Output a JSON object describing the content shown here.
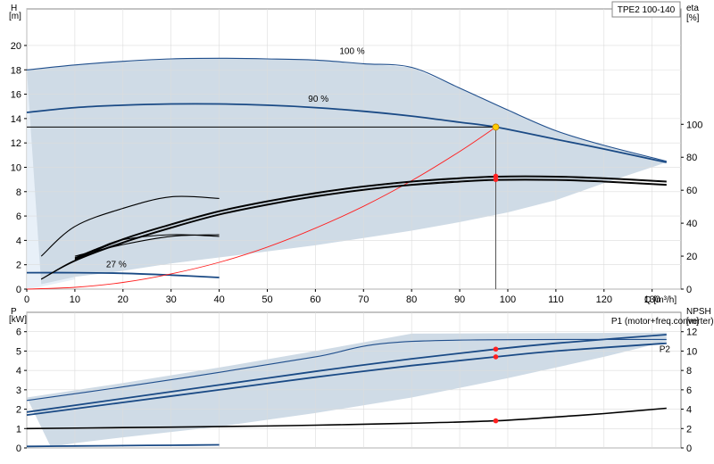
{
  "model_label": "TPE2 100-140",
  "colors": {
    "envelope_fill": "#cfdbe6",
    "envelope_light": "#e8f0f8",
    "envelope_edge": "#1f4e8c",
    "curve_dark_blue": "#1a4a85",
    "curve_black": "#000000",
    "system_curve": "#ff2020",
    "duty_marker": "#ff2020",
    "duty_point": "#ffcc00"
  },
  "chart_data": [
    {
      "id": "head",
      "type": "line",
      "xlabel": "Q [m³/h]",
      "ylabel": "H",
      "ylabel_unit": "[m]",
      "y2label": "eta",
      "y2label_unit": "[%]",
      "xlim": [
        0,
        136
      ],
      "ylim": [
        0,
        23
      ],
      "y2lim": [
        0,
        170
      ],
      "x_ticks": [
        0,
        10,
        20,
        30,
        40,
        50,
        60,
        70,
        80,
        90,
        100,
        110,
        120,
        130
      ],
      "y_ticks": [
        0,
        2,
        4,
        6,
        8,
        10,
        12,
        14,
        16,
        18,
        20
      ],
      "y2_ticks": [
        0,
        20,
        40,
        60,
        80,
        100
      ],
      "envelope": {
        "x": [
          0,
          10,
          20,
          30,
          40,
          50,
          60,
          70,
          80,
          90,
          100,
          110,
          120,
          133,
          133,
          120,
          110,
          100,
          90,
          80,
          70,
          60,
          50,
          40,
          30,
          20,
          10,
          3
        ],
        "y": [
          18.0,
          18.4,
          18.7,
          18.9,
          18.95,
          18.9,
          18.8,
          18.5,
          18.2,
          16.5,
          14.7,
          13.0,
          11.8,
          10.5,
          10.4,
          8.7,
          7.3,
          6.3,
          5.5,
          4.8,
          4.2,
          3.6,
          3.1,
          2.6,
          2.1,
          1.5,
          1.0,
          0.4
        ]
      },
      "series": [
        {
          "label": "100 %",
          "style": "envelope_edge",
          "x": [
            0,
            10,
            20,
            30,
            40,
            50,
            60,
            70,
            80,
            90,
            100,
            110,
            120,
            133
          ],
          "y": [
            18.0,
            18.4,
            18.7,
            18.9,
            18.95,
            18.9,
            18.8,
            18.5,
            18.2,
            16.5,
            14.7,
            13.0,
            11.8,
            10.5
          ]
        },
        {
          "label": "90 %",
          "style": "curve_dark_blue",
          "x": [
            0,
            10,
            20,
            30,
            40,
            50,
            60,
            70,
            80,
            90,
            97.5,
            110,
            120,
            133
          ],
          "y": [
            14.5,
            14.9,
            15.1,
            15.2,
            15.2,
            15.1,
            14.9,
            14.6,
            14.2,
            13.7,
            13.3,
            12.3,
            11.5,
            10.4
          ]
        },
        {
          "label": "27 %",
          "style": "curve_dark_blue",
          "x": [
            0,
            10,
            20,
            30,
            40
          ],
          "y": [
            1.35,
            1.35,
            1.3,
            1.15,
            0.95
          ]
        },
        {
          "label": "",
          "style": "system_curve",
          "x": [
            0,
            10,
            20,
            30,
            40,
            50,
            60,
            70,
            80,
            90,
            97.5
          ],
          "y": [
            0.0,
            0.15,
            0.55,
            1.25,
            2.2,
            3.45,
            5.0,
            6.8,
            8.9,
            11.3,
            13.3
          ]
        }
      ],
      "efficiency_curves": [
        {
          "x": [
            3,
            10,
            20,
            30,
            40,
            50,
            60,
            70,
            80,
            90,
            97.5,
            110,
            120,
            133
          ],
          "y": [
            6,
            17,
            28,
            37,
            45,
            51,
            56,
            60,
            63,
            65,
            66,
            66,
            65,
            63
          ]
        },
        {
          "x": [
            3,
            10,
            20,
            30,
            40,
            50,
            60,
            70,
            80,
            90,
            97.5,
            110,
            120,
            133
          ],
          "y": [
            6,
            17.5,
            28.5,
            37.5,
            45.5,
            51.5,
            56.5,
            60.5,
            63.5,
            65.5,
            66.5,
            66.5,
            65.5,
            63.5
          ]
        },
        {
          "x": [
            10,
            20,
            30,
            40,
            50,
            60,
            70,
            80,
            90,
            97.5,
            110,
            120,
            133
          ],
          "y": [
            18,
            30,
            39,
            47,
            53,
            58,
            62,
            65,
            67,
            68,
            68,
            67,
            65
          ]
        },
        {
          "x": [
            10,
            20,
            30,
            40,
            50,
            60,
            70,
            80,
            90,
            97.5,
            110,
            120,
            133
          ],
          "y": [
            18.5,
            30.5,
            39.5,
            47.5,
            53.5,
            58.5,
            62.5,
            65.5,
            67.5,
            68.5,
            68.5,
            67.5,
            65.5
          ]
        },
        {
          "x": [
            10,
            15,
            20,
            30,
            40
          ],
          "y": [
            19,
            25,
            30,
            33,
            32
          ]
        },
        {
          "x": [
            3,
            10,
            20,
            30,
            40
          ],
          "y": [
            20,
            38,
            49,
            56,
            55
          ]
        },
        {
          "x": [
            10,
            20,
            30,
            40
          ],
          "y": [
            20,
            27,
            32,
            33
          ]
        }
      ],
      "duty_point": {
        "q": 97.5,
        "h": 13.3,
        "eta_markers": [
          66.5,
          68.5
        ]
      }
    },
    {
      "id": "power",
      "type": "line",
      "ylabel": "P",
      "ylabel_unit": "[kW]",
      "y2label": "NPSH",
      "y2label_unit": "[m]",
      "xlim": [
        0,
        136
      ],
      "ylim": [
        0,
        7
      ],
      "y2lim": [
        0,
        14
      ],
      "y_ticks": [
        0,
        1,
        2,
        3,
        4,
        5,
        6
      ],
      "y2_ticks": [
        0,
        2,
        4,
        6,
        8,
        10,
        12
      ],
      "envelope": {
        "x": [
          0,
          20,
          40,
          60,
          80,
          133,
          133,
          120,
          100,
          80,
          60,
          40,
          20,
          10,
          5
        ],
        "y": [
          2.6,
          3.35,
          4.15,
          5.0,
          5.9,
          5.95,
          5.5,
          4.7,
          3.6,
          2.6,
          1.8,
          1.1,
          0.55,
          0.25,
          0.05
        ]
      },
      "series": [
        {
          "label": "P1 (motor+freq.converter)",
          "style": "curve_dark_blue",
          "x": [
            0,
            20,
            40,
            60,
            80,
            97.5,
            110,
            133
          ],
          "y": [
            1.85,
            2.55,
            3.25,
            3.95,
            4.6,
            5.1,
            5.4,
            5.85
          ]
        },
        {
          "label": "P2",
          "style": "curve_dark_blue",
          "x": [
            0,
            20,
            40,
            60,
            80,
            97.5,
            110,
            133
          ],
          "y": [
            1.7,
            2.35,
            3.0,
            3.65,
            4.25,
            4.7,
            5.0,
            5.4
          ]
        },
        {
          "label": "",
          "style": "envelope_edge",
          "x": [
            0,
            20,
            40,
            60,
            80,
            133
          ],
          "y": [
            2.45,
            3.15,
            3.9,
            4.7,
            5.5,
            5.6
          ]
        },
        {
          "label": "",
          "style": "curve_dark_blue",
          "x": [
            0,
            10,
            20,
            30,
            40
          ],
          "y": [
            0.08,
            0.1,
            0.12,
            0.14,
            0.16
          ]
        }
      ],
      "npsh_curve": {
        "x": [
          0,
          20,
          40,
          60,
          80,
          97.5,
          110,
          120,
          133
        ],
        "y": [
          2.0,
          2.1,
          2.2,
          2.35,
          2.55,
          2.8,
          3.2,
          3.55,
          4.1
        ]
      },
      "duty_point": {
        "q": 97.5,
        "p_markers": [
          5.1,
          4.7
        ],
        "npsh_marker": 2.8
      }
    }
  ]
}
